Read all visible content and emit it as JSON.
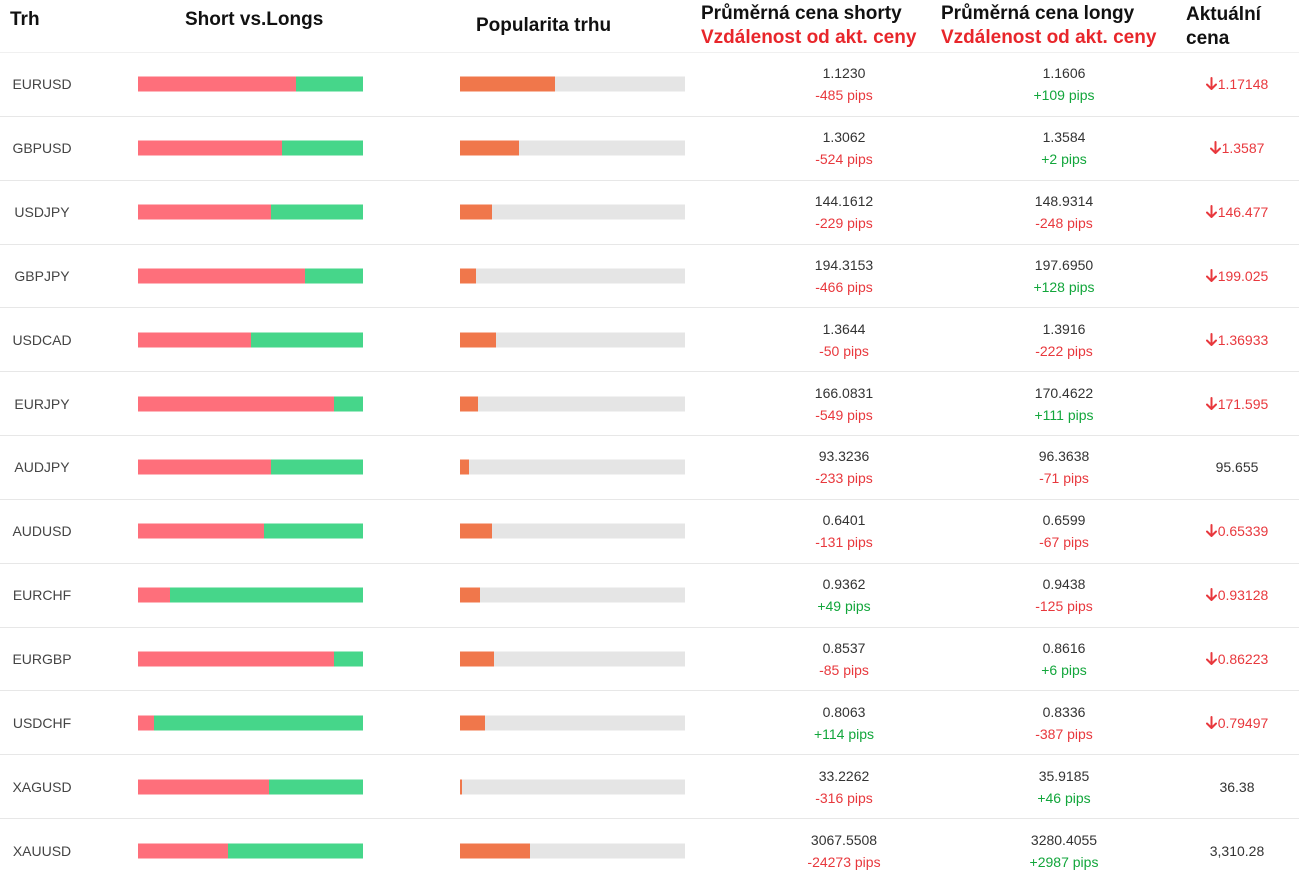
{
  "headers": {
    "market": "Trh",
    "short_vs_longs": "Short vs.Longs",
    "popularity": "Popularita trhu",
    "avg_short": "Průměrná cena shorty",
    "avg_short_sub": "Vzdálenost od akt. ceny",
    "avg_long": "Průměrná cena longy",
    "avg_long_sub": "Vzdálenost od akt. ceny",
    "current": "Aktuální cena"
  },
  "colors": {
    "short": "#fe6f7b",
    "long": "#46d68a",
    "popularity": "#f0774b",
    "track": "#e5e5e5",
    "down": "#e8383d",
    "up": "#12a63b"
  },
  "rows": [
    {
      "symbol": "EURUSD",
      "short_pct": 70,
      "popularity_pct": 42,
      "avg_short": "1.1230",
      "short_pips": "-485 pips",
      "avg_long": "1.1606",
      "long_pips": "+109 pips",
      "current": "1.17148",
      "trend": "down"
    },
    {
      "symbol": "GBPUSD",
      "short_pct": 64,
      "popularity_pct": 26,
      "avg_short": "1.3062",
      "short_pips": "-524 pips",
      "avg_long": "1.3584",
      "long_pips": "+2 pips",
      "current": "1.3587",
      "trend": "down"
    },
    {
      "symbol": "USDJPY",
      "short_pct": 59,
      "popularity_pct": 14,
      "avg_short": "144.1612",
      "short_pips": "-229 pips",
      "avg_long": "148.9314",
      "long_pips": "-248 pips",
      "current": "146.477",
      "trend": "down"
    },
    {
      "symbol": "GBPJPY",
      "short_pct": 74,
      "popularity_pct": 7,
      "avg_short": "194.3153",
      "short_pips": "-466 pips",
      "avg_long": "197.6950",
      "long_pips": "+128 pips",
      "current": "199.025",
      "trend": "down"
    },
    {
      "symbol": "USDCAD",
      "short_pct": 50,
      "popularity_pct": 16,
      "avg_short": "1.3644",
      "short_pips": "-50 pips",
      "avg_long": "1.3916",
      "long_pips": "-222 pips",
      "current": "1.36933",
      "trend": "down"
    },
    {
      "symbol": "EURJPY",
      "short_pct": 87,
      "popularity_pct": 8,
      "avg_short": "166.0831",
      "short_pips": "-549 pips",
      "avg_long": "170.4622",
      "long_pips": "+111 pips",
      "current": "171.595",
      "trend": "down"
    },
    {
      "symbol": "AUDJPY",
      "short_pct": 59,
      "popularity_pct": 4,
      "avg_short": "93.3236",
      "short_pips": "-233 pips",
      "avg_long": "96.3638",
      "long_pips": "-71 pips",
      "current": "95.655",
      "trend": "none"
    },
    {
      "symbol": "AUDUSD",
      "short_pct": 56,
      "popularity_pct": 14,
      "avg_short": "0.6401",
      "short_pips": "-131 pips",
      "avg_long": "0.6599",
      "long_pips": "-67 pips",
      "current": "0.65339",
      "trend": "down"
    },
    {
      "symbol": "EURCHF",
      "short_pct": 14,
      "popularity_pct": 9,
      "avg_short": "0.9362",
      "short_pips": "+49 pips",
      "avg_long": "0.9438",
      "long_pips": "-125 pips",
      "current": "0.93128",
      "trend": "down"
    },
    {
      "symbol": "EURGBP",
      "short_pct": 87,
      "popularity_pct": 15,
      "avg_short": "0.8537",
      "short_pips": "-85 pips",
      "avg_long": "0.8616",
      "long_pips": "+6 pips",
      "current": "0.86223",
      "trend": "down"
    },
    {
      "symbol": "USDCHF",
      "short_pct": 7,
      "popularity_pct": 11,
      "avg_short": "0.8063",
      "short_pips": "+114 pips",
      "avg_long": "0.8336",
      "long_pips": "-387 pips",
      "current": "0.79497",
      "trend": "down"
    },
    {
      "symbol": "XAGUSD",
      "short_pct": 58,
      "popularity_pct": 1,
      "avg_short": "33.2262",
      "short_pips": "-316 pips",
      "avg_long": "35.9185",
      "long_pips": "+46 pips",
      "current": "36.38",
      "trend": "none"
    },
    {
      "symbol": "XAUUSD",
      "short_pct": 40,
      "popularity_pct": 31,
      "avg_short": "3067.5508",
      "short_pips": "-24273 pips",
      "avg_long": "3280.4055",
      "long_pips": "+2987 pips",
      "current": "3,310.28",
      "trend": "none"
    }
  ]
}
